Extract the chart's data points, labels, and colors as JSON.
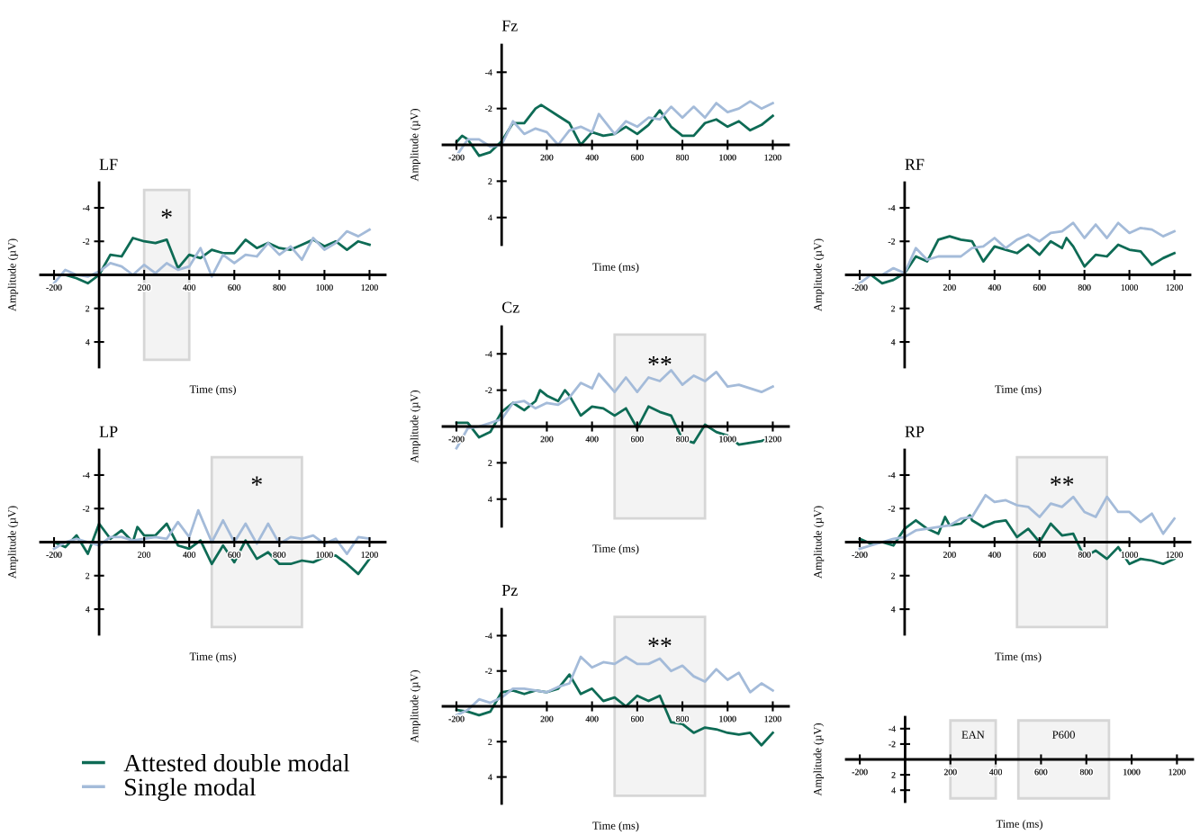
{
  "chart_data": [
    {
      "type": "line",
      "title": "Fz",
      "xlabel": "Time (ms)",
      "ylabel": "Amplitude (µV)",
      "xlim": [
        -260,
        1270
      ],
      "ylim": [
        5.5,
        -5.5
      ],
      "xticks": [
        -200,
        200,
        400,
        600,
        800,
        1000,
        1200
      ],
      "yticks": [
        -4,
        -2,
        2,
        4
      ],
      "grid": false,
      "legend": false,
      "line_style": "solid",
      "marker": "none",
      "series": [
        {
          "color": "#0e6b55",
          "x": [
            -200,
            -175,
            -150,
            -100,
            -50,
            0,
            50,
            100,
            150,
            175,
            200,
            250,
            300,
            350,
            400,
            450,
            500,
            550,
            600,
            650,
            700,
            750,
            800,
            850,
            900,
            950,
            1000,
            1050,
            1100,
            1150,
            1200
          ],
          "values": [
            -0.15,
            -0.5,
            -0.3,
            0.6,
            0.4,
            -0.2,
            -1.2,
            -1.2,
            -2.0,
            -2.2,
            -2.0,
            -1.6,
            -1.2,
            0,
            -0.7,
            -0.5,
            -0.6,
            -1.0,
            -0.6,
            -1.1,
            -1.9,
            -1.0,
            -0.5,
            -0.5,
            -1.2,
            -1.4,
            -1.0,
            -1.3,
            -0.8,
            -1.1,
            -1.6
          ]
        },
        {
          "color": "#a4bbd9",
          "x": [
            -200,
            -150,
            -100,
            -50,
            0,
            50,
            100,
            150,
            200,
            250,
            300,
            350,
            400,
            430,
            500,
            550,
            600,
            650,
            700,
            750,
            800,
            850,
            900,
            950,
            1000,
            1050,
            1100,
            1150,
            1200
          ],
          "values": [
            0.6,
            -0.3,
            -0.3,
            0.1,
            0,
            -1.3,
            -0.6,
            -0.9,
            -0.7,
            0,
            -0.8,
            -1.0,
            -0.7,
            -1.7,
            -0.6,
            -1.3,
            -1.0,
            -1.5,
            -1.4,
            -2.1,
            -1.5,
            -2.1,
            -1.5,
            -2.3,
            -1.8,
            -2.0,
            -2.4,
            -2.0,
            -2.3
          ]
        }
      ]
    },
    {
      "type": "line",
      "title": "LF",
      "xlabel": "Time (ms)",
      "ylabel": "Amplitude (µV)",
      "xlim": [
        -260,
        1270
      ],
      "ylim": [
        5.5,
        -5.5
      ],
      "xticks": [
        -200,
        200,
        400,
        600,
        800,
        1000,
        1200
      ],
      "yticks": [
        -4,
        -2,
        2,
        4
      ],
      "grid": false,
      "legend": false,
      "line_style": "solid",
      "marker": "none",
      "bands": [
        {
          "axis": "x",
          "from": 200,
          "to": 400,
          "label": "*",
          "color": "#f3f3f3"
        }
      ],
      "series": [
        {
          "color": "#0e6b55",
          "x": [
            -200,
            -150,
            -100,
            -50,
            0,
            50,
            100,
            150,
            200,
            250,
            300,
            350,
            400,
            450,
            500,
            550,
            600,
            650,
            700,
            750,
            800,
            850,
            900,
            950,
            1000,
            1050,
            1100,
            1150,
            1200
          ],
          "values": [
            0,
            0,
            0.2,
            0.5,
            0,
            -1.2,
            -1.1,
            -2.2,
            -2.0,
            -1.9,
            -2.1,
            -0.4,
            -1.2,
            -1.0,
            -1.5,
            -1.3,
            -1.3,
            -2.1,
            -1.6,
            -1.9,
            -1.6,
            -1.5,
            -1.8,
            -2.1,
            -1.7,
            -2.0,
            -1.5,
            -2.0,
            -1.8
          ]
        },
        {
          "color": "#a4bbd9",
          "x": [
            -200,
            -150,
            -100,
            -50,
            0,
            50,
            100,
            150,
            200,
            250,
            300,
            350,
            400,
            450,
            500,
            550,
            600,
            650,
            700,
            750,
            800,
            850,
            900,
            950,
            1000,
            1050,
            1100,
            1150,
            1200
          ],
          "values": [
            0.5,
            -0.3,
            0,
            0.1,
            -0.2,
            -0.7,
            -0.5,
            0,
            -0.6,
            -0.1,
            -0.7,
            -0.3,
            -0.5,
            -1.6,
            0.1,
            -1.2,
            -0.7,
            -1.2,
            -1.1,
            -1.9,
            -1.2,
            -1.7,
            -0.9,
            -2.2,
            -1.5,
            -1.9,
            -2.6,
            -2.3,
            -2.7
          ]
        }
      ]
    },
    {
      "type": "line",
      "title": "RF",
      "xlabel": "Time (ms)",
      "ylabel": "Amplitude (µV)",
      "xlim": [
        -260,
        1270
      ],
      "ylim": [
        5.5,
        -5.5
      ],
      "xticks": [
        -200,
        200,
        400,
        600,
        800,
        1000,
        1200
      ],
      "yticks": [
        -4,
        -2,
        2,
        4
      ],
      "grid": false,
      "legend": false,
      "line_style": "solid",
      "marker": "none",
      "series": [
        {
          "color": "#0e6b55",
          "x": [
            -200,
            -150,
            -100,
            -50,
            0,
            50,
            100,
            150,
            200,
            250,
            300,
            350,
            400,
            450,
            500,
            550,
            600,
            650,
            700,
            720,
            750,
            800,
            850,
            900,
            950,
            1000,
            1050,
            1100,
            1150,
            1200
          ],
          "values": [
            0,
            0,
            0.5,
            0.3,
            -0.1,
            -1.1,
            -0.8,
            -2.1,
            -2.3,
            -2.1,
            -2.0,
            -0.8,
            -1.7,
            -1.5,
            -1.3,
            -1.8,
            -1.2,
            -2.0,
            -1.6,
            -2.2,
            -1.7,
            -0.5,
            -1.2,
            -1.1,
            -1.8,
            -1.5,
            -1.4,
            -0.6,
            -1.0,
            -1.3
          ]
        },
        {
          "color": "#a4bbd9",
          "x": [
            -200,
            -150,
            -100,
            -50,
            0,
            50,
            100,
            150,
            200,
            250,
            300,
            350,
            400,
            450,
            500,
            550,
            600,
            650,
            700,
            750,
            800,
            850,
            900,
            950,
            1000,
            1050,
            1100,
            1150,
            1200
          ],
          "values": [
            0.5,
            0,
            0,
            -0.4,
            -0.1,
            -1.6,
            -0.9,
            -1.1,
            -1.1,
            -1.1,
            -1.6,
            -1.7,
            -2.2,
            -1.6,
            -2.1,
            -2.4,
            -2.0,
            -2.5,
            -2.6,
            -3.1,
            -2.2,
            -3.0,
            -2.2,
            -3.1,
            -2.5,
            -2.8,
            -2.7,
            -2.3,
            -2.6
          ]
        }
      ]
    },
    {
      "type": "line",
      "title": "Cz",
      "xlabel": "Time (ms)",
      "ylabel": "Amplitude (µV)",
      "xlim": [
        -260,
        1270
      ],
      "ylim": [
        5.5,
        -5.5
      ],
      "xticks": [
        -200,
        200,
        400,
        600,
        800,
        1000,
        1200
      ],
      "yticks": [
        -4,
        -2,
        2,
        4
      ],
      "grid": false,
      "legend": false,
      "line_style": "solid",
      "marker": "none",
      "bands": [
        {
          "axis": "x",
          "from": 500,
          "to": 900,
          "label": "**",
          "color": "#f3f3f3"
        }
      ],
      "series": [
        {
          "color": "#0e6b55",
          "x": [
            -200,
            -150,
            -100,
            -50,
            0,
            50,
            100,
            150,
            170,
            200,
            250,
            280,
            300,
            350,
            400,
            450,
            500,
            550,
            600,
            650,
            700,
            750,
            800,
            850,
            900,
            950,
            1000,
            1050,
            1100,
            1150,
            1200
          ],
          "values": [
            -0.2,
            -0.2,
            0.6,
            0.3,
            -0.8,
            -1.3,
            -0.9,
            -1.4,
            -2.0,
            -1.7,
            -1.4,
            -2.0,
            -1.7,
            -0.6,
            -1.1,
            -1.0,
            -0.6,
            -1.0,
            0.1,
            -1.1,
            -0.8,
            -0.6,
            0.7,
            0.9,
            -0.1,
            0.3,
            0.5,
            1.0,
            0.9,
            0.8,
            0.6
          ]
        },
        {
          "color": "#a4bbd9",
          "x": [
            -200,
            -150,
            -100,
            -50,
            0,
            50,
            100,
            150,
            200,
            250,
            300,
            350,
            400,
            430,
            500,
            550,
            600,
            650,
            700,
            750,
            800,
            850,
            900,
            950,
            1000,
            1050,
            1100,
            1150,
            1200
          ],
          "values": [
            1.2,
            0.1,
            0,
            -0.2,
            -0.4,
            -1.3,
            -1.4,
            -1.0,
            -1.3,
            -1.2,
            -1.6,
            -2.4,
            -2.1,
            -2.9,
            -1.9,
            -2.7,
            -1.9,
            -2.7,
            -2.5,
            -3.1,
            -2.3,
            -2.8,
            -2.5,
            -3.0,
            -2.2,
            -2.3,
            -2.1,
            -1.9,
            -2.2
          ]
        }
      ]
    },
    {
      "type": "line",
      "title": "LP",
      "xlabel": "Time (ms)",
      "ylabel": "Amplitude (µV)",
      "xlim": [
        -260,
        1270
      ],
      "ylim": [
        5.5,
        -5.5
      ],
      "xticks": [
        -200,
        200,
        400,
        600,
        800,
        1000,
        1200
      ],
      "yticks": [
        -4,
        -2,
        2,
        4
      ],
      "grid": false,
      "legend": "bottom left",
      "line_style": "solid",
      "marker": "none",
      "bands": [
        {
          "axis": "x",
          "from": 500,
          "to": 900,
          "label": "*",
          "color": "#f3f3f3"
        }
      ],
      "series": [
        {
          "name": "Attested double modal",
          "color": "#0e6b55",
          "x": [
            -200,
            -150,
            -100,
            -50,
            0,
            50,
            100,
            150,
            170,
            200,
            250,
            300,
            350,
            400,
            450,
            500,
            550,
            600,
            650,
            700,
            750,
            800,
            850,
            900,
            950,
            1000,
            1050,
            1100,
            1150,
            1200
          ],
          "values": [
            0,
            0.3,
            -0.4,
            0.7,
            -1.1,
            -0.2,
            -0.7,
            0,
            -0.9,
            -0.4,
            -0.4,
            -1.1,
            0.2,
            0.4,
            -0.1,
            1.3,
            0.2,
            1.2,
            -0.1,
            1.0,
            0.6,
            1.3,
            1.3,
            1.1,
            1.2,
            0.9,
            0.8,
            1.3,
            1.9,
            1.0
          ]
        },
        {
          "name": "Single modal",
          "color": "#a4bbd9",
          "x": [
            -200,
            -150,
            -100,
            -50,
            0,
            50,
            100,
            150,
            200,
            250,
            300,
            350,
            400,
            440,
            500,
            550,
            600,
            650,
            700,
            750,
            800,
            850,
            900,
            950,
            1000,
            1050,
            1100,
            1150,
            1200
          ],
          "values": [
            0.4,
            0,
            -0.2,
            0,
            0.2,
            -0.3,
            -0.3,
            -0.1,
            -0.2,
            -0.3,
            -0.2,
            -1.2,
            -0.3,
            -1.9,
            0,
            -1.3,
            0,
            -1.1,
            0.1,
            -1.1,
            0.1,
            -0.3,
            -0.2,
            -0.4,
            0.1,
            -0.2,
            0.7,
            -0.3,
            -0.2
          ]
        }
      ]
    },
    {
      "type": "line",
      "title": "RP",
      "xlabel": "Time (ms)",
      "ylabel": "Amplitude (µV)",
      "xlim": [
        -260,
        1270
      ],
      "ylim": [
        5.5,
        -5.5
      ],
      "xticks": [
        -200,
        200,
        400,
        600,
        800,
        1000,
        1200
      ],
      "yticks": [
        -4,
        -2,
        2,
        4
      ],
      "grid": false,
      "legend": false,
      "line_style": "solid",
      "marker": "none",
      "bands": [
        {
          "axis": "x",
          "from": 500,
          "to": 900,
          "label": "**",
          "color": "#f3f3f3"
        }
      ],
      "series": [
        {
          "color": "#0e6b55",
          "x": [
            -200,
            -150,
            -100,
            -50,
            0,
            50,
            100,
            150,
            180,
            200,
            250,
            290,
            300,
            350,
            400,
            450,
            500,
            550,
            600,
            650,
            700,
            750,
            800,
            850,
            900,
            950,
            1000,
            1050,
            1100,
            1150,
            1200
          ],
          "values": [
            -0.2,
            0.1,
            0,
            0.2,
            -0.8,
            -1.3,
            -0.8,
            -0.5,
            -1.5,
            -1.0,
            -1.1,
            -1.6,
            -1.3,
            -0.9,
            -1.2,
            -1.3,
            -0.3,
            -0.8,
            0,
            -1.1,
            -0.4,
            -0.5,
            0.9,
            0.5,
            1.0,
            0.3,
            1.3,
            1.0,
            1.1,
            1.3,
            1.0
          ]
        },
        {
          "color": "#a4bbd9",
          "x": [
            -200,
            -150,
            -100,
            -50,
            0,
            50,
            100,
            150,
            200,
            250,
            300,
            360,
            400,
            450,
            500,
            550,
            600,
            650,
            700,
            750,
            800,
            850,
            900,
            950,
            1000,
            1050,
            1100,
            1150,
            1200
          ],
          "values": [
            0.4,
            0.2,
            0,
            -0.2,
            -0.3,
            -0.7,
            -0.8,
            -0.9,
            -1.0,
            -1.4,
            -1.5,
            -2.8,
            -2.4,
            -2.5,
            -2.2,
            -2.1,
            -1.5,
            -2.3,
            -2.1,
            -2.7,
            -1.8,
            -1.5,
            -2.7,
            -1.8,
            -1.8,
            -1.2,
            -1.7,
            -0.5,
            -1.4
          ]
        }
      ]
    },
    {
      "type": "line",
      "title": "Pz",
      "xlabel": "Time (ms)",
      "ylabel": "Amplitude (µV)",
      "xlim": [
        -260,
        1270
      ],
      "ylim": [
        5.5,
        -5.5
      ],
      "xticks": [
        -200,
        200,
        400,
        600,
        800,
        1000,
        1200
      ],
      "yticks": [
        -4,
        -2,
        2,
        4
      ],
      "grid": false,
      "legend": false,
      "line_style": "solid",
      "marker": "none",
      "bands": [
        {
          "axis": "x",
          "from": 500,
          "to": 900,
          "label": "**",
          "color": "#f3f3f3"
        }
      ],
      "series": [
        {
          "color": "#0e6b55",
          "x": [
            -200,
            -150,
            -100,
            -50,
            0,
            50,
            100,
            150,
            200,
            250,
            300,
            350,
            400,
            450,
            500,
            550,
            600,
            650,
            700,
            750,
            800,
            850,
            900,
            950,
            1000,
            1050,
            1100,
            1150,
            1200
          ],
          "values": [
            0.2,
            0.3,
            0.5,
            0.3,
            -0.8,
            -0.9,
            -0.7,
            -0.9,
            -0.8,
            -1.0,
            -1.8,
            -0.7,
            -1.0,
            -0.3,
            -0.5,
            0,
            -0.6,
            -0.3,
            -0.6,
            0.9,
            1.0,
            1.5,
            1.2,
            1.3,
            1.5,
            1.6,
            1.5,
            2.2,
            1.5
          ]
        },
        {
          "color": "#a4bbd9",
          "x": [
            -200,
            -150,
            -100,
            -50,
            0,
            50,
            100,
            150,
            200,
            250,
            300,
            350,
            400,
            450,
            500,
            550,
            600,
            650,
            700,
            750,
            800,
            850,
            900,
            950,
            1000,
            1050,
            1100,
            1150,
            1200
          ],
          "values": [
            0.5,
            0.2,
            -0.4,
            -0.2,
            -0.5,
            -1.0,
            -1.0,
            -0.9,
            -0.8,
            -1.1,
            -1.3,
            -2.8,
            -2.2,
            -2.5,
            -2.4,
            -2.8,
            -2.4,
            -2.4,
            -2.7,
            -2.0,
            -2.3,
            -1.7,
            -1.4,
            -2.1,
            -1.5,
            -1.9,
            -0.8,
            -1.3,
            -0.9
          ]
        }
      ]
    },
    {
      "type": "line",
      "xlabel": "Time (ms)",
      "ylabel": "Amplitude (µV)",
      "xlim": [
        -260,
        1270
      ],
      "ylim": [
        5.5,
        -5.5
      ],
      "xticks": [
        -200,
        200,
        400,
        600,
        800,
        1000,
        1200
      ],
      "yticks": [
        -4,
        -2,
        2,
        4
      ],
      "grid": false,
      "legend": false,
      "bands": [
        {
          "axis": "x",
          "from": 200,
          "to": 400,
          "label": "EAN",
          "color": "#f3f3f3"
        },
        {
          "axis": "x",
          "from": 500,
          "to": 900,
          "label": "P600",
          "color": "#f3f3f3"
        }
      ]
    }
  ]
}
